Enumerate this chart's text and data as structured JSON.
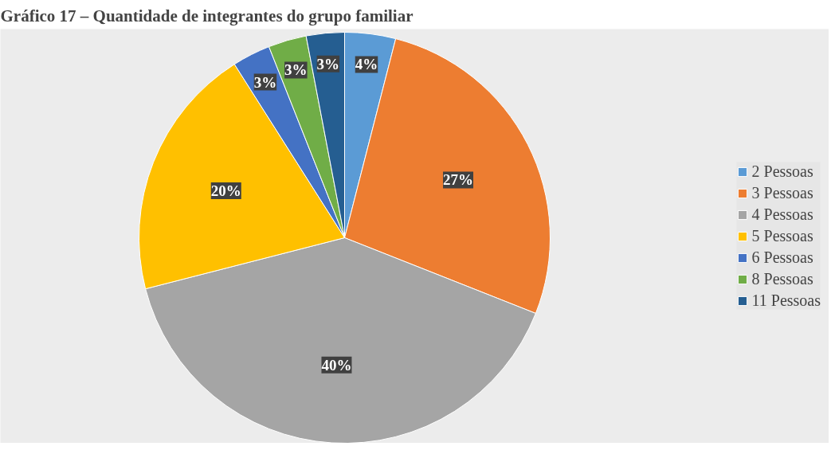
{
  "chart_data": {
    "type": "pie",
    "title": "Gráfico 17 – Quantidade de integrantes do grupo familiar",
    "categories": [
      "2 Pessoas",
      "3 Pessoas",
      "4 Pessoas",
      "5 Pessoas",
      "6 Pessoas",
      "8 Pessoas",
      "11 Pessoas"
    ],
    "values": [
      4,
      27,
      40,
      20,
      3,
      3,
      3
    ],
    "colors": [
      "#5b9bd5",
      "#ed7d31",
      "#a5a5a5",
      "#ffc000",
      "#4472c4",
      "#70ad47",
      "#255e91"
    ],
    "value_labels": [
      "4%",
      "27%",
      "40%",
      "20%",
      "3%",
      "3%",
      "3%"
    ],
    "legend": "right"
  }
}
